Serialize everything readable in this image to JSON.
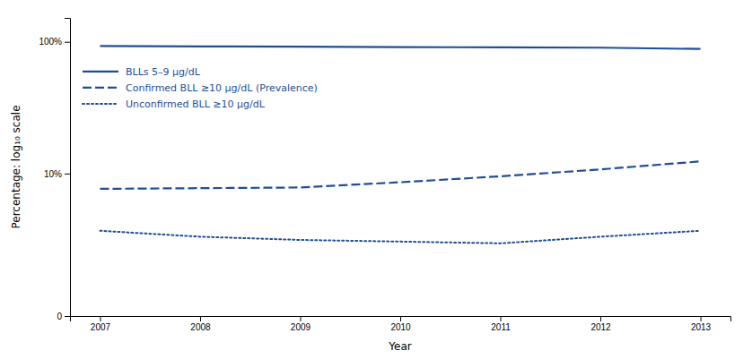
{
  "chart_data": {
    "type": "line",
    "x": [
      2007,
      2008,
      2009,
      2010,
      2011,
      2012,
      2013
    ],
    "series": [
      {
        "name": "BLLs 5–9 μg/dL",
        "color": "#1F4E96",
        "line_style": "solid",
        "values": [
          93.0,
          92.5,
          92.0,
          91.5,
          91.0,
          90.5,
          88.5
        ]
      },
      {
        "name": "Confirmed BLL ≥10 μg/dL (Prevalence)",
        "color": "#1F4E96",
        "line_style": "dashed",
        "values": [
          7.5,
          7.6,
          7.7,
          8.5,
          9.5,
          10.8,
          12.5
        ]
      },
      {
        "name": "Unconfirmed BLL ≥10 μg/dL",
        "color": "#1F4E96",
        "line_style": "dotted",
        "values": [
          3.2,
          2.8,
          2.6,
          2.5,
          2.4,
          2.8,
          3.2
        ]
      }
    ],
    "x_label": "Year",
    "y_label": "Percentage: log₁₀ scale",
    "xlim": [
      2006.7,
      2013.3
    ],
    "xticks": [
      2007,
      2008,
      2009,
      2010,
      2011,
      2012,
      2013
    ],
    "ylim": [
      0,
      150
    ],
    "yticks": [
      0,
      {
        "value": 10,
        "label": "10%"
      },
      {
        "value": 100,
        "label": "100%"
      }
    ],
    "log": "y",
    "grid": false,
    "legend": "upper left"
  }
}
